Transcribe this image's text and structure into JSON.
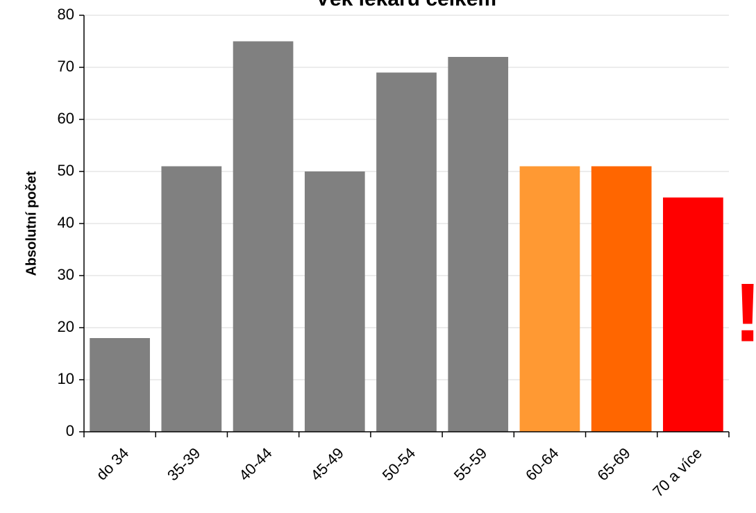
{
  "chart_data": {
    "type": "bar",
    "title": "Věk lékařů celkem",
    "y_label": "Absolutní počet",
    "annotation": "!",
    "annotation_color": "#ff0000",
    "categories": [
      "do 34",
      "35-39",
      "40-44",
      "45-49",
      "50-54",
      "55-59",
      "60-64",
      "65-69",
      "70 a více"
    ],
    "values": [
      18,
      51,
      75,
      50,
      69,
      72,
      51,
      51,
      45
    ],
    "colors": [
      "#808080",
      "#808080",
      "#808080",
      "#808080",
      "#808080",
      "#808080",
      "#ff9933",
      "#ff6600",
      "#ff0000"
    ],
    "ylim": [
      0,
      80
    ],
    "yticks": [
      0,
      10,
      20,
      30,
      40,
      50,
      60,
      70,
      80
    ],
    "grid": true
  }
}
